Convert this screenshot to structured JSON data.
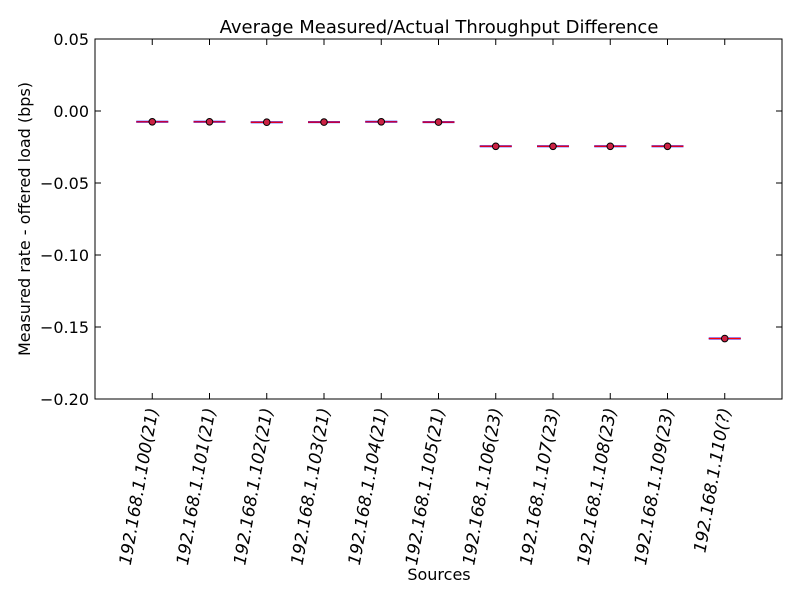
{
  "chart_data": {
    "type": "box",
    "title": "Average Measured/Actual Throughput Difference",
    "xlabel": "Sources",
    "ylabel": "Measured rate - offered load (bps)",
    "ylim": [
      -0.2,
      0.05
    ],
    "yticks": [
      0.05,
      0.0,
      -0.05,
      -0.1,
      -0.15,
      -0.2
    ],
    "ytick_labels": [
      "0.05",
      "0.00",
      "−0.05",
      "−0.10",
      "−0.15",
      "−0.20"
    ],
    "categories": [
      "192.168.1.100(21)",
      "192.168.1.101(21)",
      "192.168.1.102(21)",
      "192.168.1.103(21)",
      "192.168.1.104(21)",
      "192.168.1.105(21)",
      "192.168.1.106(23)",
      "192.168.1.107(23)",
      "192.168.1.108(23)",
      "192.168.1.109(23)",
      "192.168.1.110(?)"
    ],
    "values": [
      -0.0075,
      -0.0075,
      -0.0078,
      -0.0077,
      -0.0075,
      -0.0077,
      -0.0245,
      -0.0245,
      -0.0245,
      -0.0245,
      -0.158
    ],
    "grid": false,
    "colors": {
      "box_line": "#0000ff",
      "median_line": "#ff0000",
      "outlier_fill": "#cc2244",
      "outlier_stroke": "#000000",
      "axes": "#000000"
    }
  }
}
